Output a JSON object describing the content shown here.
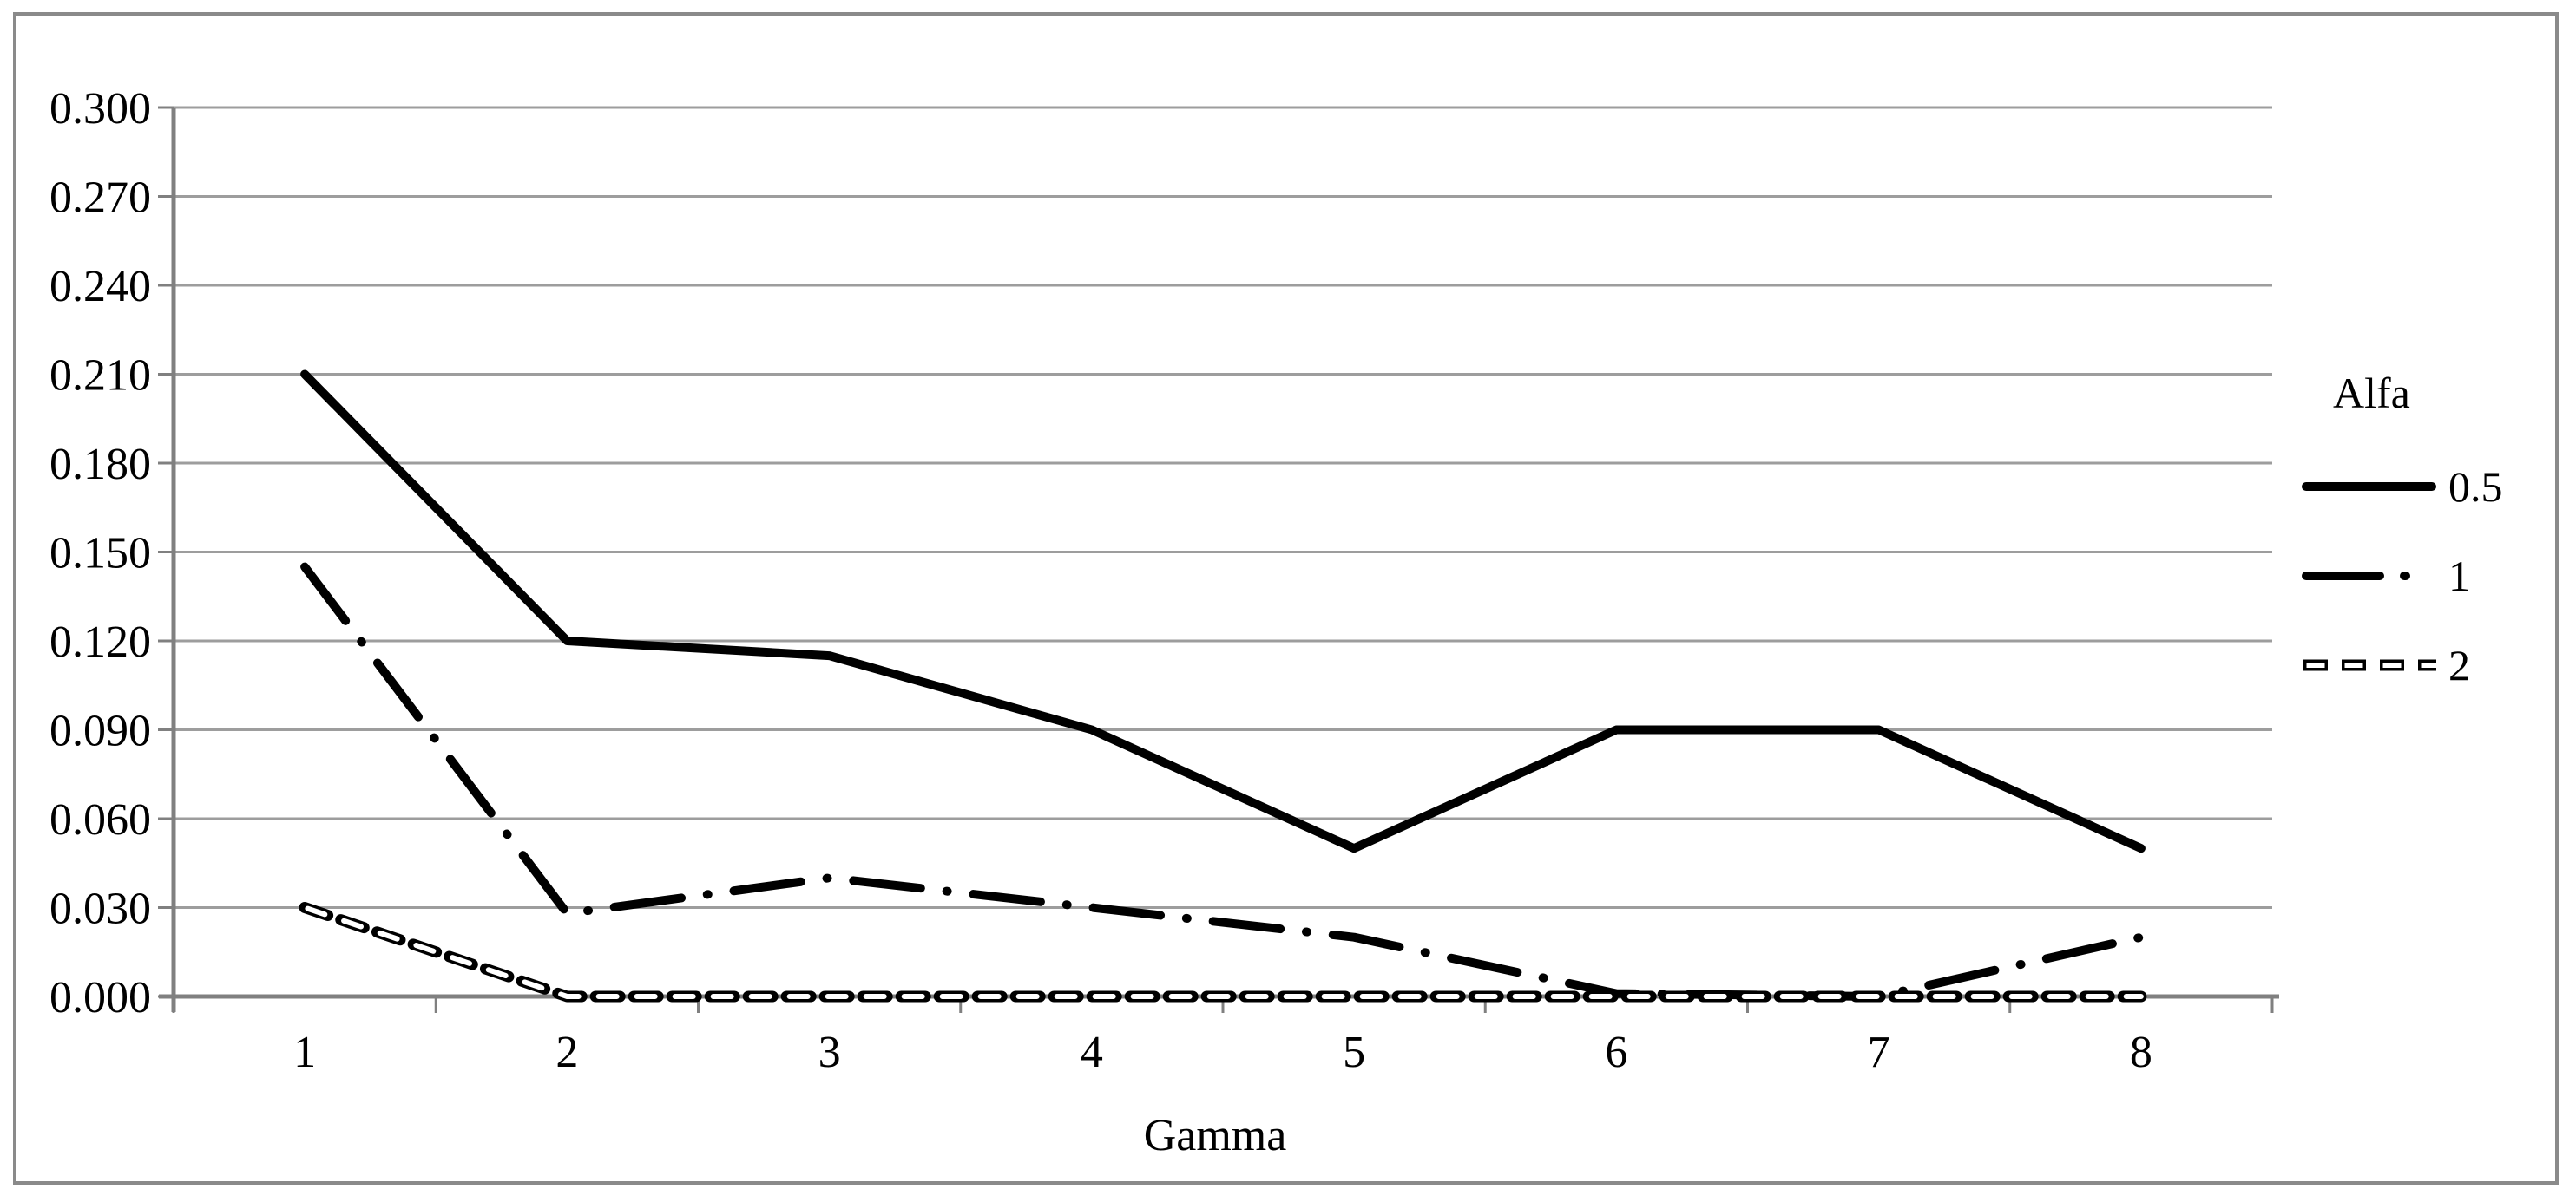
{
  "figure": {
    "background": "#ffffff",
    "border_color": "#8a8a8a"
  },
  "chart_data": {
    "type": "line",
    "title": "",
    "xlabel": "Gamma",
    "ylabel": "",
    "ylim": [
      0,
      0.3
    ],
    "grid": "horizontal",
    "categories": [
      "1",
      "2",
      "3",
      "4",
      "5",
      "6",
      "7",
      "8"
    ],
    "series": [
      {
        "name": "0.5",
        "style": "solid",
        "color": "#000000",
        "values": [
          0.21,
          0.12,
          0.115,
          0.09,
          0.05,
          0.09,
          0.09,
          0.05
        ]
      },
      {
        "name": "1",
        "style": "dash-dot",
        "color": "#000000",
        "values": [
          0.145,
          0.028,
          0.04,
          0.03,
          0.02,
          0.001,
          0.0,
          0.02
        ]
      },
      {
        "name": "2",
        "style": "outlined-dash",
        "color": "#000000",
        "values": [
          0.03,
          0.0,
          0.0,
          0.0,
          0.0,
          0.0,
          0.0,
          0.0
        ]
      }
    ],
    "y_axis": {
      "min": 0,
      "max": 0.3,
      "step": 0.03,
      "tick_labels": [
        "0.000",
        "0.030",
        "0.060",
        "0.090",
        "0.120",
        "0.150",
        "0.180",
        "0.210",
        "0.240",
        "0.270",
        "0.300"
      ]
    },
    "x_axis": {
      "title": "Gamma",
      "tick_labels": [
        "1",
        "2",
        "3",
        "4",
        "5",
        "6",
        "7",
        "8"
      ]
    },
    "legend": {
      "title": "Alfa",
      "position": "right",
      "entries": [
        "0.5",
        "1",
        "2"
      ]
    },
    "colors": {
      "gridline": "#9d9d9d",
      "axis": "#808080",
      "series": "#000000"
    }
  }
}
